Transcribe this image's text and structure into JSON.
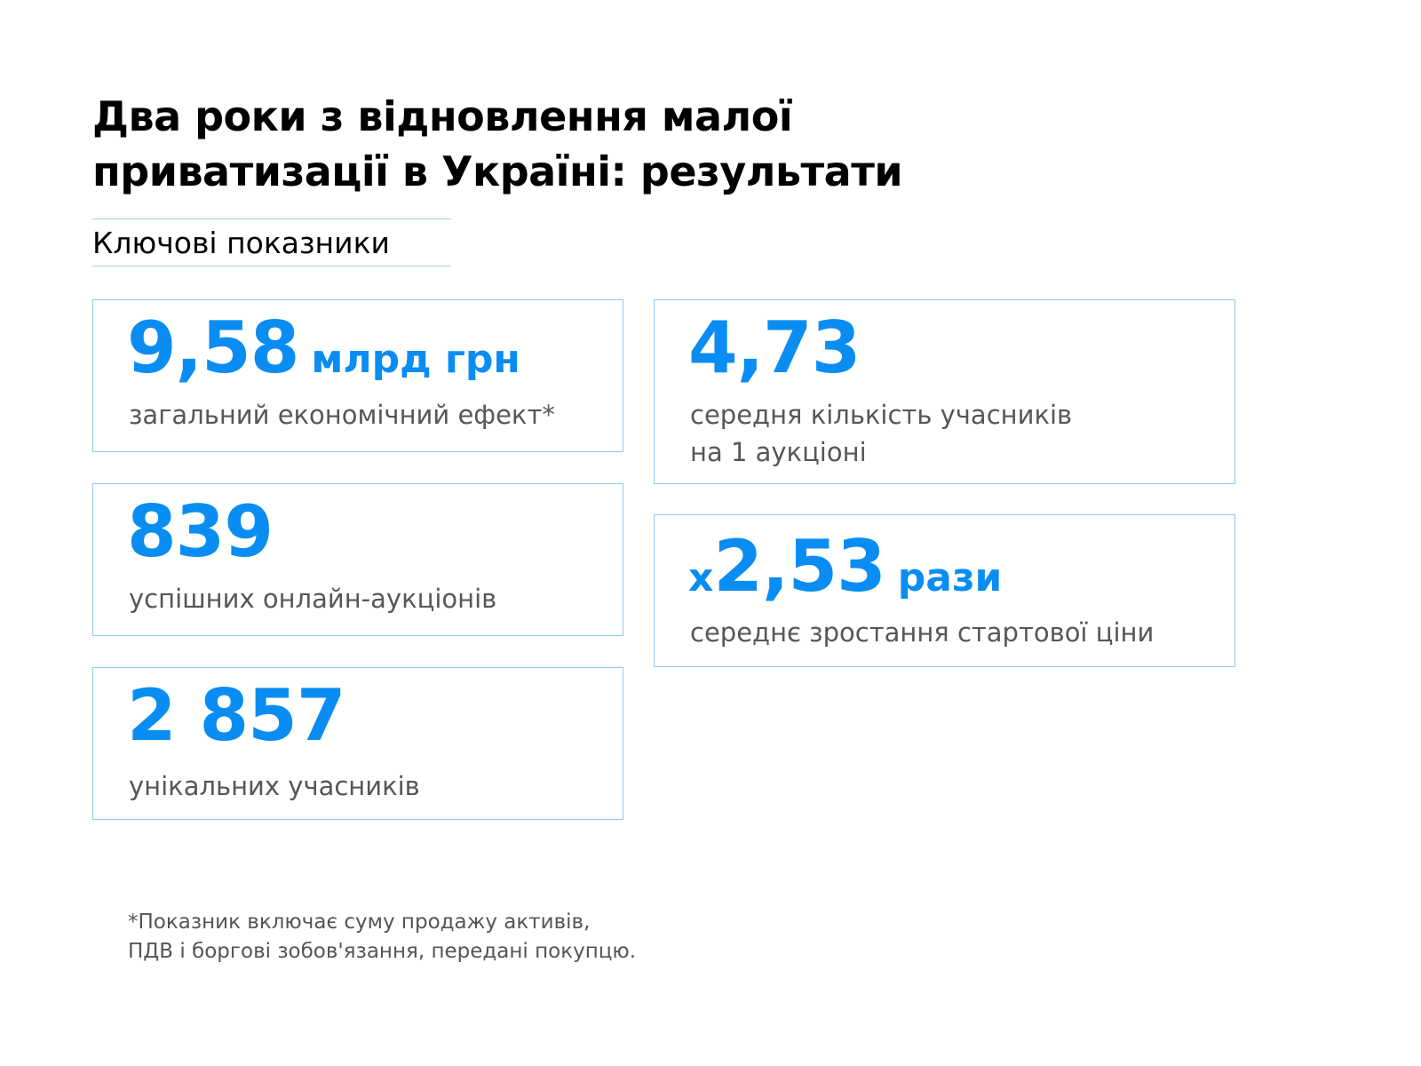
{
  "title": {
    "line1": "Два роки з відновлення малої",
    "line2": "приватизації в Україні: результати"
  },
  "section_label": "Ключові показники",
  "cards": {
    "economic_effect": {
      "value": "9,58",
      "unit": "млрд грн",
      "description": "загальний економічний ефект*"
    },
    "successful_auctions": {
      "value": "839",
      "description": "успішних онлайн-аукціонів"
    },
    "unique_participants": {
      "value": "2 857",
      "description": "унікальних учасників"
    },
    "avg_participants": {
      "value": "4,73",
      "description_line1": "середня кількість учасників",
      "description_line2": "на 1 аукціоні"
    },
    "price_growth": {
      "prefix": "x",
      "value": "2,53",
      "unit": "рази",
      "description": "середнє зростання стартової ціни"
    }
  },
  "footnote": {
    "line1": "*Показник включає суму продажу активів,",
    "line2": "ПДВ і боргові зобов'язання, передані покупцю."
  },
  "colors": {
    "accent": "#0a8df2",
    "card_border": "#8ccaf3",
    "text_muted": "#575757"
  }
}
